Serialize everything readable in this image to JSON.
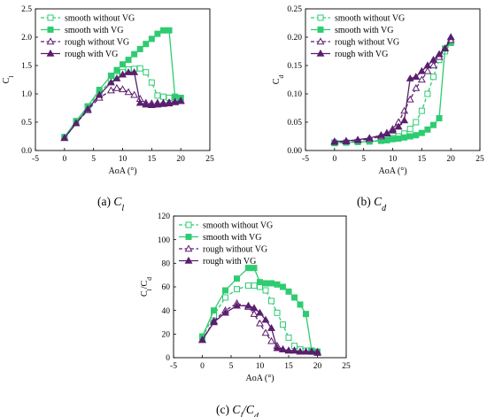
{
  "colors": {
    "smooth": "#2ecc71",
    "rough": "#5b1e6e"
  },
  "captions": [
    {
      "id": "a",
      "parts": [
        [
          "(a) ",
          false
        ],
        [
          "C",
          true
        ],
        [
          "l",
          true,
          "sub"
        ]
      ]
    },
    {
      "id": "b",
      "parts": [
        [
          "(b) ",
          false
        ],
        [
          "C",
          true
        ],
        [
          "d",
          true,
          "sub"
        ]
      ]
    },
    {
      "id": "c",
      "parts": [
        [
          "(c) ",
          false
        ],
        [
          "C",
          true
        ],
        [
          "l",
          true,
          "sub"
        ],
        [
          "/C",
          true
        ],
        [
          "d",
          true,
          "sub"
        ]
      ]
    }
  ],
  "chart_data": [
    {
      "id": "a",
      "type": "line",
      "xlabel": "AoA (°)",
      "ylabel": "C_l",
      "xlim": [
        -5,
        25
      ],
      "ylim": [
        0.0,
        2.5
      ],
      "xticks": [
        -5,
        0,
        5,
        10,
        15,
        20,
        25
      ],
      "yticks": [
        0.0,
        0.5,
        1.0,
        1.5,
        2.0,
        2.5
      ],
      "ytick_labels": [
        "0.0",
        "0.5",
        "1.0",
        "1.5",
        "2.0",
        "2.5"
      ],
      "legend_position": "top-left",
      "series": [
        {
          "name": "smooth without VG",
          "color": "#2ecc71",
          "dash": true,
          "marker": "square-open",
          "x": [
            0,
            2,
            4,
            6,
            8,
            9,
            10,
            11,
            12,
            13,
            14,
            15,
            16,
            17,
            18,
            19,
            20
          ],
          "y": [
            0.23,
            0.5,
            0.76,
            1.02,
            1.23,
            1.31,
            1.38,
            1.43,
            1.44,
            1.45,
            1.38,
            1.2,
            0.97,
            0.95,
            0.93,
            0.92,
            0.92
          ]
        },
        {
          "name": "smooth with VG",
          "color": "#2ecc71",
          "dash": false,
          "marker": "square-filled",
          "x": [
            0,
            2,
            4,
            6,
            8,
            9,
            10,
            11,
            12,
            13,
            14,
            15,
            16,
            17,
            18,
            19,
            20
          ],
          "y": [
            0.24,
            0.52,
            0.78,
            1.07,
            1.32,
            1.42,
            1.52,
            1.6,
            1.7,
            1.79,
            1.88,
            1.97,
            2.06,
            2.12,
            2.12,
            0.95,
            0.93
          ]
        },
        {
          "name": "rough without VG",
          "color": "#5b1e6e",
          "dash": true,
          "marker": "triangle-open",
          "x": [
            0,
            2,
            4,
            6,
            8,
            9,
            10,
            11,
            12,
            13,
            14,
            15,
            16,
            17,
            18,
            19,
            20
          ],
          "y": [
            0.22,
            0.48,
            0.71,
            0.93,
            1.06,
            1.1,
            1.08,
            1.03,
            0.98,
            0.91,
            0.84,
            0.83,
            0.84,
            0.84,
            0.85,
            0.86,
            0.88
          ]
        },
        {
          "name": "rough with VG",
          "color": "#5b1e6e",
          "dash": false,
          "marker": "triangle-filled",
          "x": [
            0,
            2,
            4,
            6,
            8,
            9,
            10,
            11,
            12,
            13,
            14,
            15,
            16,
            17,
            18,
            19,
            20
          ],
          "y": [
            0.22,
            0.48,
            0.73,
            0.98,
            1.2,
            1.27,
            1.34,
            1.38,
            1.38,
            0.84,
            0.81,
            0.8,
            0.81,
            0.82,
            0.83,
            0.85,
            0.87
          ]
        }
      ]
    },
    {
      "id": "b",
      "type": "line",
      "xlabel": "AoA (°)",
      "ylabel": "C_d",
      "xlim": [
        -5,
        25
      ],
      "ylim": [
        0.0,
        0.25
      ],
      "xticks": [
        -5,
        0,
        5,
        10,
        15,
        20,
        25
      ],
      "yticks": [
        0.0,
        0.05,
        0.1,
        0.15,
        0.2,
        0.25
      ],
      "ytick_labels": [
        "0.00",
        "0.05",
        "0.10",
        "0.15",
        "0.20",
        "0.25"
      ],
      "legend_position": "top-left",
      "series": [
        {
          "name": "smooth without VG",
          "color": "#2ecc71",
          "dash": true,
          "marker": "square-open",
          "x": [
            0,
            2,
            4,
            6,
            8,
            9,
            10,
            11,
            12,
            13,
            14,
            15,
            16,
            17,
            18,
            19,
            20
          ],
          "y": [
            0.013,
            0.014,
            0.015,
            0.016,
            0.018,
            0.02,
            0.022,
            0.025,
            0.03,
            0.038,
            0.05,
            0.07,
            0.1,
            0.13,
            0.16,
            0.175,
            0.19
          ]
        },
        {
          "name": "smooth with VG",
          "color": "#2ecc71",
          "dash": false,
          "marker": "square-filled",
          "x": [
            0,
            2,
            4,
            6,
            8,
            9,
            10,
            11,
            12,
            13,
            14,
            15,
            16,
            17,
            18,
            19,
            20
          ],
          "y": [
            0.014,
            0.014,
            0.015,
            0.016,
            0.017,
            0.018,
            0.02,
            0.021,
            0.023,
            0.025,
            0.027,
            0.031,
            0.037,
            0.045,
            0.057,
            0.18,
            0.19
          ]
        },
        {
          "name": "rough without VG",
          "color": "#5b1e6e",
          "dash": true,
          "marker": "triangle-open",
          "x": [
            0,
            2,
            4,
            6,
            8,
            9,
            10,
            11,
            12,
            13,
            14,
            15,
            16,
            17,
            18,
            19,
            20
          ],
          "y": [
            0.015,
            0.016,
            0.018,
            0.02,
            0.025,
            0.03,
            0.038,
            0.05,
            0.07,
            0.09,
            0.11,
            0.125,
            0.14,
            0.15,
            0.165,
            0.18,
            0.195
          ]
        },
        {
          "name": "rough with VG",
          "color": "#5b1e6e",
          "dash": false,
          "marker": "triangle-filled",
          "x": [
            0,
            2,
            4,
            6,
            8,
            9,
            10,
            11,
            12,
            13,
            14,
            15,
            16,
            17,
            18,
            19,
            20
          ],
          "y": [
            0.016,
            0.017,
            0.019,
            0.022,
            0.027,
            0.031,
            0.035,
            0.042,
            0.053,
            0.127,
            0.13,
            0.14,
            0.15,
            0.16,
            0.17,
            0.18,
            0.2
          ]
        }
      ]
    },
    {
      "id": "c",
      "type": "line",
      "xlabel": "AoA (°)",
      "ylabel": "C_l/C_d",
      "xlim": [
        -5,
        25
      ],
      "ylim": [
        0,
        120
      ],
      "xticks": [
        -5,
        0,
        5,
        10,
        15,
        20,
        25
      ],
      "yticks": [
        0,
        20,
        40,
        60,
        80,
        100,
        120
      ],
      "ytick_labels": [
        "0",
        "20",
        "40",
        "60",
        "80",
        "100",
        "120"
      ],
      "legend_position": "top-left",
      "series": [
        {
          "name": "smooth without VG",
          "color": "#2ecc71",
          "dash": true,
          "marker": "square-open",
          "x": [
            0,
            2,
            4,
            6,
            8,
            9,
            10,
            11,
            12,
            13,
            14,
            15,
            16,
            17,
            18,
            19,
            20
          ],
          "y": [
            17,
            36,
            51,
            58,
            61,
            61,
            60,
            57,
            48,
            38,
            28,
            17,
            10,
            7,
            6,
            5,
            5
          ]
        },
        {
          "name": "smooth with VG",
          "color": "#2ecc71",
          "dash": false,
          "marker": "square-filled",
          "x": [
            0,
            2,
            4,
            6,
            8,
            9,
            10,
            11,
            12,
            13,
            14,
            15,
            16,
            17,
            18,
            19,
            20
          ],
          "y": [
            18,
            40,
            57,
            67,
            76,
            76,
            64,
            63,
            63,
            62,
            60,
            56,
            51,
            45,
            37,
            6,
            5
          ]
        },
        {
          "name": "rough without VG",
          "color": "#5b1e6e",
          "dash": true,
          "marker": "triangle-open",
          "x": [
            0,
            2,
            4,
            6,
            8,
            9,
            10,
            11,
            12,
            13,
            14,
            15,
            16,
            17,
            18,
            19,
            20
          ],
          "y": [
            15,
            31,
            40,
            46,
            43,
            37,
            29,
            21,
            14,
            10,
            7,
            6,
            6,
            5,
            5,
            5,
            5
          ]
        },
        {
          "name": "rough with VG",
          "color": "#5b1e6e",
          "dash": false,
          "marker": "triangle-filled",
          "x": [
            0,
            2,
            4,
            6,
            8,
            9,
            10,
            11,
            12,
            13,
            14,
            15,
            16,
            17,
            18,
            19,
            20
          ],
          "y": [
            15,
            30,
            38,
            44,
            44,
            42,
            38,
            32,
            25,
            8,
            7,
            6,
            6,
            5,
            5,
            5,
            4
          ]
        }
      ]
    }
  ]
}
